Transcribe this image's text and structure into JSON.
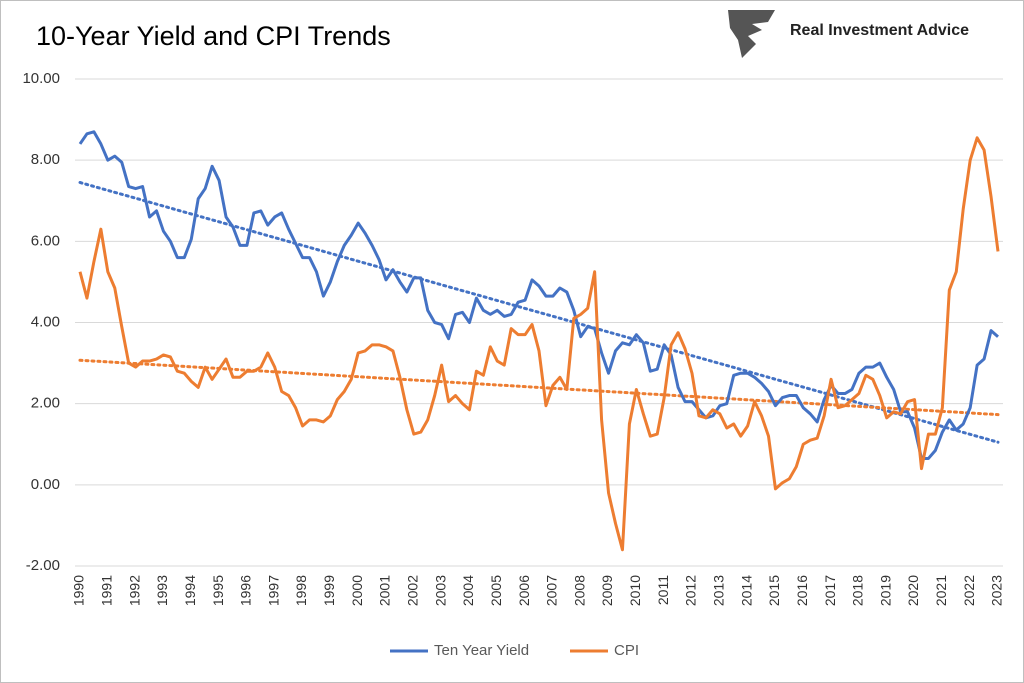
{
  "brand": "Real Investment Advice",
  "chart_data": {
    "type": "line",
    "title": "10-Year Yield and CPI Trends",
    "categories": [
      "1990",
      null,
      null,
      null,
      "1991",
      null,
      null,
      null,
      "1992",
      null,
      null,
      null,
      "1993",
      null,
      null,
      null,
      "1994",
      null,
      null,
      null,
      "1995",
      null,
      null,
      null,
      "1996",
      null,
      null,
      null,
      "1997",
      null,
      null,
      null,
      "1998",
      null,
      null,
      null,
      "1999",
      null,
      null,
      null,
      "2000",
      null,
      null,
      null,
      "2001",
      null,
      null,
      null,
      "2002",
      null,
      null,
      null,
      "2003",
      null,
      null,
      null,
      "2004",
      null,
      null,
      null,
      "2005",
      null,
      null,
      null,
      "2006",
      null,
      null,
      null,
      "2007",
      null,
      null,
      null,
      "2008",
      null,
      null,
      null,
      "2009",
      null,
      null,
      null,
      "2010",
      null,
      null,
      null,
      "2011",
      null,
      null,
      null,
      "2012",
      null,
      null,
      null,
      "2013",
      null,
      null,
      null,
      "2014",
      null,
      null,
      null,
      "2015",
      null,
      null,
      null,
      "2016",
      null,
      null,
      null,
      "2017",
      null,
      null,
      null,
      "2018",
      null,
      null,
      null,
      "2019",
      null,
      null,
      null,
      "2020",
      null,
      null,
      null,
      "2021",
      null,
      null,
      null,
      "2022",
      null,
      null,
      null,
      "2023"
    ],
    "series": [
      {
        "name": "Ten Year Yield",
        "color": "#4472c4",
        "trend": [
          7.45,
          1.05
        ],
        "values": [
          8.4,
          8.65,
          8.7,
          8.4,
          8.0,
          8.1,
          7.95,
          7.35,
          7.3,
          7.35,
          6.6,
          6.75,
          6.25,
          6.0,
          5.6,
          5.6,
          6.05,
          7.05,
          7.3,
          7.85,
          7.5,
          6.6,
          6.35,
          5.9,
          5.9,
          6.7,
          6.75,
          6.4,
          6.6,
          6.7,
          6.3,
          5.95,
          5.6,
          5.6,
          5.25,
          4.65,
          5.0,
          5.5,
          5.9,
          6.15,
          6.45,
          6.2,
          5.9,
          5.55,
          5.05,
          5.3,
          5.0,
          4.75,
          5.1,
          5.1,
          4.3,
          4.0,
          3.95,
          3.6,
          4.2,
          4.25,
          4.0,
          4.6,
          4.3,
          4.2,
          4.3,
          4.15,
          4.2,
          4.5,
          4.55,
          5.05,
          4.9,
          4.65,
          4.65,
          4.85,
          4.75,
          4.3,
          3.65,
          3.9,
          3.85,
          3.25,
          2.75,
          3.3,
          3.5,
          3.45,
          3.7,
          3.5,
          2.8,
          2.85,
          3.45,
          3.2,
          2.4,
          2.05,
          2.05,
          1.85,
          1.65,
          1.7,
          1.95,
          2.0,
          2.7,
          2.75,
          2.75,
          2.65,
          2.5,
          2.3,
          1.95,
          2.15,
          2.2,
          2.2,
          1.9,
          1.75,
          1.55,
          2.1,
          2.45,
          2.25,
          2.25,
          2.35,
          2.75,
          2.9,
          2.9,
          3.0,
          2.65,
          2.35,
          1.8,
          1.8,
          1.4,
          0.65,
          0.65,
          0.85,
          1.3,
          1.6,
          1.35,
          1.5,
          1.9,
          2.95,
          3.1,
          3.8,
          3.65
        ]
      },
      {
        "name": "CPI",
        "color": "#ed7d31",
        "trend": [
          3.07,
          1.73
        ],
        "values": [
          5.25,
          4.6,
          5.5,
          6.3,
          5.25,
          4.85,
          3.9,
          3.0,
          2.9,
          3.05,
          3.05,
          3.1,
          3.2,
          3.15,
          2.8,
          2.75,
          2.55,
          2.4,
          2.9,
          2.6,
          2.85,
          3.1,
          2.65,
          2.65,
          2.8,
          2.8,
          2.9,
          3.25,
          2.9,
          2.3,
          2.2,
          1.9,
          1.45,
          1.6,
          1.6,
          1.55,
          1.7,
          2.1,
          2.3,
          2.6,
          3.25,
          3.3,
          3.45,
          3.45,
          3.4,
          3.3,
          2.65,
          1.85,
          1.25,
          1.3,
          1.6,
          2.2,
          2.95,
          2.05,
          2.2,
          2.0,
          1.85,
          2.8,
          2.7,
          3.4,
          3.05,
          2.95,
          3.85,
          3.7,
          3.7,
          3.95,
          3.3,
          1.95,
          2.45,
          2.65,
          2.35,
          4.1,
          4.2,
          4.35,
          5.25,
          1.6,
          -0.2,
          -0.95,
          -1.6,
          1.5,
          2.35,
          1.75,
          1.2,
          1.25,
          2.15,
          3.45,
          3.75,
          3.35,
          2.75,
          1.7,
          1.65,
          1.85,
          1.75,
          1.4,
          1.5,
          1.2,
          1.45,
          2.05,
          1.7,
          1.2,
          -0.1,
          0.05,
          0.15,
          0.45,
          1.0,
          1.1,
          1.15,
          1.7,
          2.6,
          1.9,
          1.95,
          2.1,
          2.25,
          2.7,
          2.6,
          2.2,
          1.65,
          1.8,
          1.75,
          2.05,
          2.1,
          0.4,
          1.25,
          1.25,
          1.9,
          4.8,
          5.25,
          6.8,
          8.0,
          8.55,
          8.25,
          7.1,
          5.75
        ]
      }
    ],
    "ylim": [
      -2,
      10
    ],
    "yticks": [
      {
        "value": -2,
        "label": "-2.00"
      },
      {
        "value": 0,
        "label": "0.00"
      },
      {
        "value": 2,
        "label": "2.00"
      },
      {
        "value": 4,
        "label": "4.00"
      },
      {
        "value": 6,
        "label": "6.00"
      },
      {
        "value": 8,
        "label": "8.00"
      },
      {
        "value": 10,
        "label": "10.00"
      }
    ],
    "grid": true
  }
}
